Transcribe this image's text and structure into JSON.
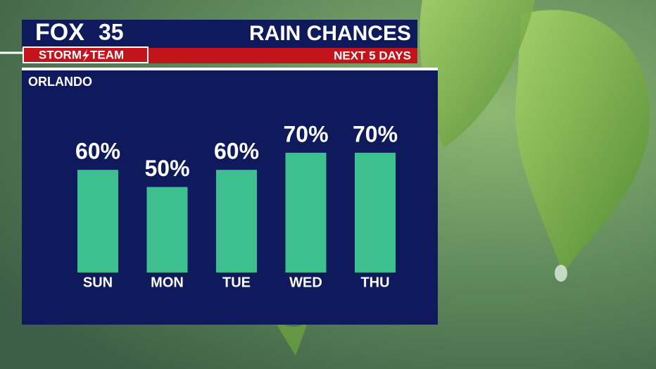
{
  "brand": {
    "name": "FOX",
    "channel": "35",
    "team_left": "STORM",
    "team_right": "TEAM"
  },
  "chart_data": {
    "type": "bar",
    "title": "RAIN CHANCES",
    "subtitle": "NEXT 5 DAYS",
    "location": "ORLANDO",
    "categories": [
      "SUN",
      "MON",
      "TUE",
      "WED",
      "THU"
    ],
    "values": [
      60,
      50,
      60,
      70,
      70
    ],
    "value_labels": [
      "60%",
      "50%",
      "60%",
      "70%",
      "70%"
    ],
    "color": "#3dbf8f"
  }
}
